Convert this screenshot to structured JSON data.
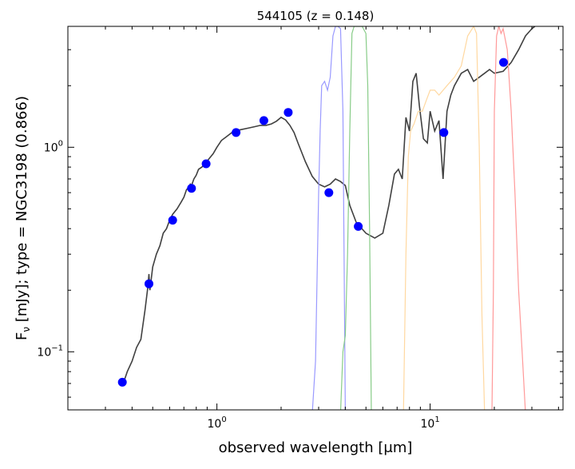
{
  "chart_data": {
    "type": "line",
    "title": "544105 (z = 0.148)",
    "xlabel": "observed wavelength [μm]",
    "ylabel": "Fν [mJy];  type = NGC3198 (0.866)",
    "x_scale": "log",
    "y_scale": "log",
    "xlim": [
      0.2,
      42
    ],
    "ylim": [
      0.052,
      3.9
    ],
    "x_tick_labels": [
      {
        "value": 1,
        "base": "10",
        "exp": "0"
      },
      {
        "value": 10,
        "base": "10",
        "exp": "1"
      }
    ],
    "y_tick_labels": [
      {
        "value": 0.1,
        "base": "10",
        "exp": "−1"
      },
      {
        "value": 1,
        "base": "10",
        "exp": "0"
      }
    ],
    "series": [
      {
        "kind": "model_sed",
        "color": "#404040",
        "x": [
          0.36,
          0.38,
          0.4,
          0.42,
          0.44,
          0.46,
          0.475,
          0.48,
          0.485,
          0.5,
          0.52,
          0.54,
          0.56,
          0.58,
          0.6,
          0.62,
          0.65,
          0.68,
          0.7,
          0.72,
          0.74,
          0.75,
          0.76,
          0.78,
          0.8,
          0.82,
          0.85,
          0.88,
          0.92,
          0.96,
          1.0,
          1.05,
          1.1,
          1.2,
          1.3,
          1.4,
          1.5,
          1.6,
          1.7,
          1.8,
          1.9,
          2.0,
          2.1,
          2.2,
          2.3,
          2.4,
          2.6,
          2.8,
          3.0,
          3.2,
          3.4,
          3.6,
          3.8,
          4.0,
          4.2,
          4.5,
          5.0,
          5.5,
          6.0,
          6.4,
          6.8,
          7.1,
          7.4,
          7.7,
          8.0,
          8.3,
          8.6,
          8.9,
          9.3,
          9.7,
          10.0,
          10.5,
          11.0,
          11.5,
          12.0,
          12.5,
          13.0,
          14.0,
          15.0,
          16.0,
          17.0,
          18.0,
          19.0,
          20.0,
          22.0,
          24.0,
          26.0,
          28.0,
          30.0,
          33.0,
          36.0,
          40.0
        ],
        "y": [
          0.068,
          0.08,
          0.09,
          0.105,
          0.115,
          0.16,
          0.21,
          0.24,
          0.2,
          0.26,
          0.3,
          0.33,
          0.38,
          0.4,
          0.44,
          0.47,
          0.5,
          0.54,
          0.57,
          0.62,
          0.64,
          0.66,
          0.65,
          0.7,
          0.73,
          0.78,
          0.8,
          0.83,
          0.88,
          0.93,
          1.0,
          1.08,
          1.12,
          1.2,
          1.22,
          1.24,
          1.26,
          1.28,
          1.28,
          1.3,
          1.34,
          1.4,
          1.36,
          1.28,
          1.18,
          1.05,
          0.85,
          0.72,
          0.66,
          0.64,
          0.66,
          0.7,
          0.68,
          0.65,
          0.52,
          0.43,
          0.38,
          0.36,
          0.38,
          0.52,
          0.74,
          0.78,
          0.7,
          1.4,
          1.2,
          2.1,
          2.3,
          1.6,
          1.1,
          1.05,
          1.5,
          1.2,
          1.35,
          0.7,
          1.5,
          1.8,
          2.0,
          2.3,
          2.4,
          2.1,
          2.2,
          2.3,
          2.4,
          2.3,
          2.35,
          2.6,
          3.0,
          3.5,
          3.8,
          4.1,
          4.4,
          4.8
        ]
      },
      {
        "kind": "filter",
        "color": "#9999ff",
        "x": [
          2.8,
          2.9,
          3.0,
          3.05,
          3.1,
          3.2,
          3.3,
          3.4,
          3.5,
          3.6,
          3.7,
          3.8,
          3.9,
          4.0
        ],
        "y": [
          0.05,
          0.09,
          0.6,
          1.2,
          2.0,
          2.1,
          1.9,
          2.2,
          3.5,
          3.9,
          3.9,
          3.8,
          1.5,
          0.05
        ]
      },
      {
        "kind": "filter",
        "color": "#88cc88",
        "x": [
          3.8,
          3.9,
          4.0,
          4.1,
          4.2,
          4.3,
          4.4,
          4.6,
          4.8,
          5.0,
          5.1,
          5.2,
          5.3
        ],
        "y": [
          0.05,
          0.1,
          0.12,
          0.3,
          1.2,
          3.6,
          3.9,
          3.9,
          3.9,
          3.6,
          2.0,
          0.4,
          0.05
        ]
      },
      {
        "kind": "filter",
        "color": "#ffd8a0",
        "x": [
          7.5,
          7.7,
          7.9,
          8.1,
          8.4,
          8.8,
          9.2,
          9.6,
          10.0,
          10.5,
          11.0,
          12.0,
          13.0,
          14.0,
          15.0,
          16.0,
          16.5,
          17.0,
          17.5,
          18.0
        ],
        "y": [
          0.05,
          0.3,
          0.9,
          1.2,
          1.3,
          1.5,
          1.5,
          1.7,
          1.9,
          1.9,
          1.8,
          2.0,
          2.2,
          2.5,
          3.5,
          3.9,
          3.6,
          1.0,
          0.15,
          0.05
        ]
      },
      {
        "kind": "filter",
        "color": "#ff9999",
        "x": [
          19.5,
          19.8,
          20.0,
          20.5,
          21.0,
          21.5,
          22.0,
          23.0,
          24.0,
          25.0,
          26.0,
          27.0,
          28.0
        ],
        "y": [
          0.05,
          0.2,
          1.5,
          3.5,
          3.9,
          3.6,
          3.8,
          3.0,
          1.5,
          0.6,
          0.2,
          0.1,
          0.05
        ]
      }
    ],
    "observed_points": {
      "color": "#0000ff",
      "x": [
        0.36,
        0.48,
        0.62,
        0.76,
        0.89,
        1.23,
        1.66,
        2.16,
        3.35,
        4.6,
        11.6,
        22.1
      ],
      "y": [
        0.071,
        0.215,
        0.44,
        0.63,
        0.83,
        1.18,
        1.35,
        1.48,
        0.6,
        0.41,
        1.18,
        2.6
      ]
    }
  }
}
